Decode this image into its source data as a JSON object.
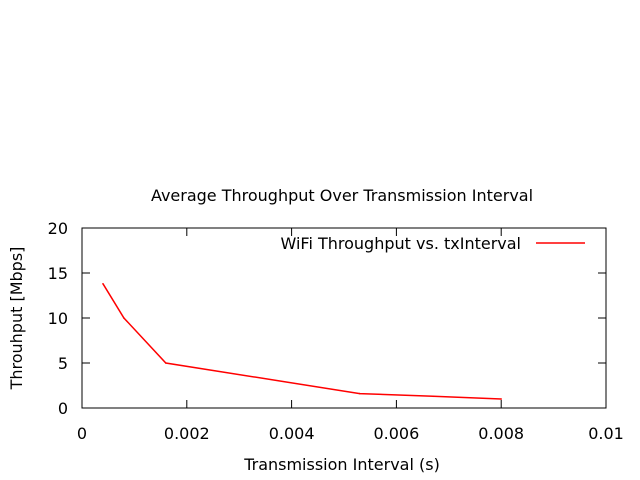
{
  "chart_data": {
    "type": "line",
    "title": "Average Throughput Over Transmission Interval",
    "xlabel": "Transmission Interval (s)",
    "ylabel": "Throuhput [Mbps]",
    "xlim": [
      0,
      0.01
    ],
    "ylim": [
      0,
      20
    ],
    "x_ticks": [
      "0",
      "0.002",
      "0.004",
      "0.006",
      "0.008",
      "0.01"
    ],
    "y_ticks": [
      "0",
      "5",
      "10",
      "15",
      "20"
    ],
    "grid": false,
    "legend_position": "top-right",
    "series": [
      {
        "name": "WiFi Throughput vs. txInterval",
        "color": "#ff0000",
        "x": [
          0.0004,
          0.0008,
          0.0016,
          0.0053,
          0.0067,
          0.008
        ],
        "y": [
          13.8,
          10.0,
          5.0,
          1.6,
          1.3,
          1.0
        ]
      }
    ]
  }
}
